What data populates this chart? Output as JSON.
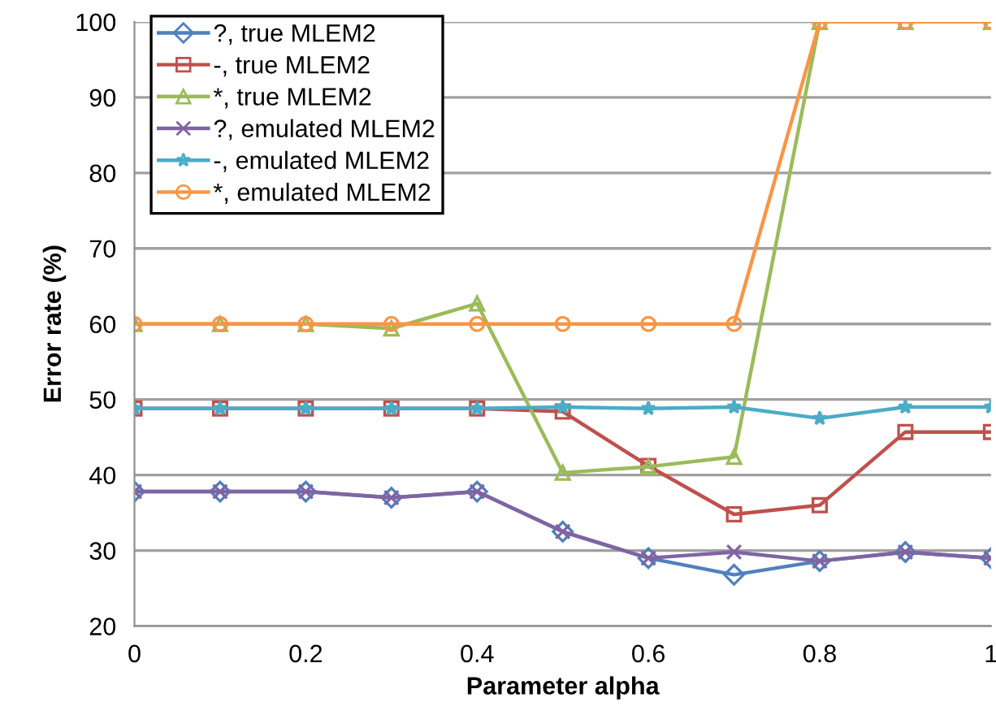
{
  "chart_data": {
    "type": "line",
    "xlabel": "Parameter alpha",
    "ylabel": "Error rate (%)",
    "x": [
      0,
      0.1,
      0.2,
      0.3,
      0.4,
      0.5,
      0.6,
      0.7,
      0.8,
      0.9,
      1
    ],
    "xlim": [
      0,
      1
    ],
    "xticks": [
      0,
      0.2,
      0.4,
      0.6,
      0.8,
      1
    ],
    "ylim": [
      20,
      100
    ],
    "yticks": [
      20,
      30,
      40,
      50,
      60,
      70,
      80,
      90,
      100
    ],
    "grid": "y",
    "legend": "top left",
    "series": [
      {
        "name": "?, true MLEM2",
        "color": "#4f81bd",
        "marker": "diamond",
        "values": [
          37.8,
          37.8,
          37.8,
          37.0,
          37.8,
          32.5,
          29.0,
          26.8,
          28.6,
          29.8,
          29.0
        ]
      },
      {
        "name": "-, true MLEM2",
        "color": "#c0504d",
        "marker": "square",
        "values": [
          48.8,
          48.8,
          48.8,
          48.8,
          48.8,
          48.4,
          41.2,
          34.8,
          36.0,
          45.7,
          45.7
        ]
      },
      {
        "name": "*, true MLEM2",
        "color": "#9bbb59",
        "marker": "triangle",
        "values": [
          60,
          60,
          60,
          59.4,
          62.7,
          40.3,
          41.1,
          42.4,
          100,
          100,
          100
        ]
      },
      {
        "name": "?, emulated MLEM2",
        "color": "#8064a2",
        "marker": "cross",
        "values": [
          37.8,
          37.8,
          37.8,
          37.0,
          37.8,
          32.5,
          29.0,
          29.8,
          28.6,
          29.8,
          29.0
        ]
      },
      {
        "name": "-, emulated MLEM2",
        "color": "#4bacc6",
        "marker": "star",
        "values": [
          48.8,
          48.8,
          48.8,
          48.8,
          48.8,
          49.0,
          48.8,
          49.0,
          47.5,
          49.0,
          49.0
        ]
      },
      {
        "name": "*, emulated MLEM2",
        "color": "#f79646",
        "marker": "circle",
        "values": [
          60,
          60,
          60,
          60,
          60,
          60,
          60,
          60,
          100,
          100,
          100
        ]
      }
    ]
  }
}
